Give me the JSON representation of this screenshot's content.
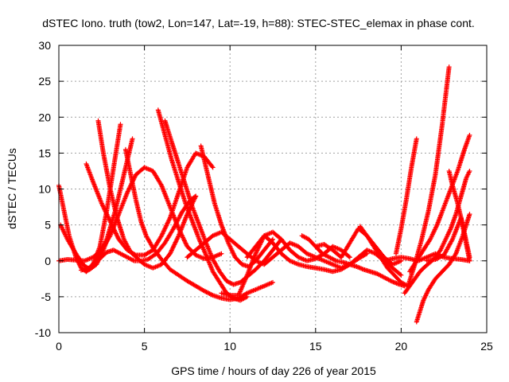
{
  "chart_data": {
    "type": "scatter",
    "title": "dSTEC Iono. truth (tow2, Lon=147, Lat=-19, h=88): STEC-STEC_elemax in phase cont.",
    "xlabel": "GPS time / hours of day 226 of year 2015",
    "ylabel": "dSTEC  / TECUs",
    "xlim": [
      0,
      25
    ],
    "ylim": [
      -10,
      30
    ],
    "xticks": [
      "0",
      "5",
      "10",
      "15",
      "20",
      "25"
    ],
    "yticks": [
      "-10",
      "-5",
      "0",
      "5",
      "10",
      "15",
      "20",
      "25",
      "30"
    ],
    "grid": true,
    "marker": "+",
    "color": "#ff0000",
    "series": [
      {
        "x": [
          0,
          0.3,
          0.6,
          1.0,
          1.3,
          1.6
        ],
        "y": [
          10.5,
          7,
          3.5,
          0.5,
          -1.0,
          -1.5
        ]
      },
      {
        "x": [
          0.1,
          0.5,
          1.0,
          1.4,
          1.8,
          2.2,
          2.6,
          3.0
        ],
        "y": [
          5,
          3,
          1,
          -0.5,
          -1.2,
          -0.5,
          1.5,
          4
        ]
      },
      {
        "x": [
          0,
          0.5,
          1.0,
          1.5,
          2.0,
          2.5,
          3.0,
          3.5,
          4.0,
          4.5,
          5.0,
          5.5,
          6.0,
          6.5,
          7.0,
          7.5,
          8.0,
          8.5,
          9.0,
          9.5
        ],
        "y": [
          0,
          0.2,
          0.1,
          0,
          0.5,
          1.5,
          3.5,
          6.5,
          9.5,
          12,
          13,
          12.5,
          10.5,
          7.5,
          4.5,
          2,
          0.8,
          0.3,
          0.5,
          1
        ]
      },
      {
        "x": [
          1.3,
          1.8,
          2.3,
          2.8,
          3.3,
          3.8,
          4.3
        ],
        "y": [
          -1.3,
          -1,
          0.5,
          3,
          7,
          12,
          17
        ]
      },
      {
        "x": [
          1.6,
          2.0,
          2.4,
          2.8,
          3.2,
          3.6,
          4.0,
          4.4,
          4.8,
          5.2,
          5.7,
          6.2,
          6.7,
          7.2,
          7.7,
          8.0
        ],
        "y": [
          -1.5,
          -0.8,
          0.3,
          1.2,
          1.5,
          1.0,
          0.5,
          0,
          0,
          0.2,
          1,
          2.5,
          4.5,
          6.8,
          8.5,
          9
        ]
      },
      {
        "x": [
          1.6,
          2.0,
          2.4,
          2.8,
          3.2,
          3.6
        ],
        "y": [
          -1.3,
          -0.5,
          2,
          7,
          13,
          19
        ]
      },
      {
        "x": [
          1.6,
          2.0,
          2.5,
          3.0,
          3.5,
          4.0,
          4.5,
          5.0,
          5.5,
          6.0,
          6.5,
          7.0,
          7.5,
          8.0,
          8.5,
          9.0
        ],
        "y": [
          13.5,
          11,
          8,
          5.5,
          3,
          1.5,
          0.8,
          0.8,
          1.5,
          3.5,
          6,
          9.5,
          13,
          15,
          14.5,
          13
        ]
      },
      {
        "x": [
          2.3,
          2.6,
          3.0,
          3.4,
          3.8,
          4.2,
          4.6,
          5.0,
          5.5,
          6.0,
          6.5,
          7.0,
          7.5,
          8.0
        ],
        "y": [
          19.5,
          15,
          10,
          6,
          3,
          1.2,
          0.3,
          -0.5,
          -1,
          -0.5,
          1,
          3.5,
          6.5,
          9
        ]
      },
      {
        "x": [
          3.9,
          4.2,
          4.5,
          4.8,
          5.1,
          5.5,
          6.0,
          6.5,
          7.0,
          7.5,
          8.0,
          8.5,
          9.0,
          9.5,
          10.0,
          10.5,
          11.0,
          11.5,
          12.0,
          12.5
        ],
        "y": [
          15.5,
          12,
          8.5,
          5.5,
          3.5,
          1.8,
          0.2,
          -1.2,
          -2,
          -2.8,
          -3.5,
          -4.2,
          -4.8,
          -5.2,
          -5.4,
          -5.2,
          -4.5,
          -4,
          -3.5,
          -3
        ]
      },
      {
        "x": [
          5.8,
          6.2,
          6.6,
          7.0,
          7.4,
          7.8,
          8.2,
          8.6,
          9.0,
          9.4,
          9.8,
          10.2,
          10.6,
          11.0
        ],
        "y": [
          21,
          17.5,
          14,
          11,
          8,
          5.5,
          3,
          0.8,
          -1.5,
          -3,
          -4.5,
          -5.2,
          -5.5,
          -5.0
        ]
      },
      {
        "x": [
          6.2,
          6.6,
          7.0,
          7.4,
          7.8,
          8.2,
          8.6,
          9.0,
          9.4,
          9.8,
          10.2,
          10.6,
          11.0,
          11.5,
          12.0,
          12.5,
          13.0
        ],
        "y": [
          19.5,
          16.5,
          13.5,
          10.5,
          7.5,
          5,
          2.5,
          0.2,
          -1.5,
          -2.8,
          -3.3,
          -3,
          -2.2,
          -1.2,
          0,
          1.5,
          3
        ]
      },
      {
        "x": [
          8.3,
          8.7,
          9.1,
          9.5,
          9.9,
          10.3,
          10.7,
          11.1,
          11.5,
          12.0,
          12.5
        ],
        "y": [
          16,
          12,
          8,
          5,
          2.5,
          0.5,
          -0.5,
          -0.8,
          0,
          1.5,
          3
        ]
      },
      {
        "x": [
          7.5,
          8.0,
          8.5,
          9.0,
          9.5,
          10.0,
          10.5,
          11.0,
          11.5,
          12.0,
          12.5,
          13.0,
          13.5,
          14.0,
          14.5,
          15.0,
          15.5,
          16.0,
          16.5,
          17.0,
          17.5,
          18.0
        ],
        "y": [
          0.5,
          1.5,
          2.5,
          3.5,
          4,
          3,
          2,
          1,
          0,
          -0.5,
          0.5,
          1.5,
          2.5,
          2,
          1,
          0.5,
          0,
          -0.5,
          -1,
          -0.5,
          0.3,
          1
        ]
      },
      {
        "x": [
          9.5,
          10.0,
          10.5,
          11.0,
          11.5,
          12.0,
          12.5,
          13.0,
          13.5,
          14.0,
          14.5,
          15.0,
          15.5,
          16.0,
          16.5,
          17.0
        ],
        "y": [
          -4.5,
          -4.8,
          -4.8,
          -2,
          1,
          3.5,
          4,
          3,
          1.5,
          0.5,
          0,
          0.3,
          1,
          2,
          1.5,
          0.5
        ]
      },
      {
        "x": [
          11.0,
          11.5,
          12.0,
          12.5,
          13.0,
          13.5,
          14.0,
          14.5,
          15.0,
          15.5,
          16.0,
          16.5,
          17.0,
          17.5,
          18.0,
          18.5,
          19.0,
          19.5,
          20.0
        ],
        "y": [
          0.5,
          2,
          3.5,
          2.5,
          1,
          0,
          -0.5,
          -0.8,
          -1,
          -1.2,
          -1.5,
          -1.2,
          -0.5,
          0.5,
          1.5,
          1,
          0,
          -1,
          -2
        ]
      },
      {
        "x": [
          14.2,
          14.6,
          15.0,
          15.4,
          15.8,
          16.2,
          16.6,
          17.0,
          17.4,
          17.8,
          18.2,
          18.6,
          19.0,
          19.4,
          19.8,
          20.2
        ],
        "y": [
          3.5,
          3,
          2,
          1,
          0.5,
          0,
          -0.2,
          -0.5,
          -0.8,
          -1.2,
          -1.5,
          -1.8,
          -2.3,
          -2.8,
          -3.2,
          -3.5
        ]
      },
      {
        "x": [
          15.0,
          15.5,
          16.0,
          16.5,
          17.0,
          17.5,
          18.0,
          18.5,
          19.0,
          19.5,
          20.0
        ],
        "y": [
          2,
          2.3,
          1.5,
          0.5,
          2.5,
          4.5,
          3.5,
          2,
          0.5,
          -0.5,
          0
        ]
      },
      {
        "x": [
          17.6,
          18.0,
          18.4,
          18.8,
          19.2,
          19.6,
          20.0,
          20.4
        ],
        "y": [
          4.8,
          3.5,
          2,
          0.5,
          -1,
          -2,
          -3,
          -3.5
        ]
      },
      {
        "x": [
          19.0,
          19.5,
          20.0,
          20.5,
          21.0,
          21.5,
          22.0,
          22.5,
          23.0,
          23.5,
          24.0
        ],
        "y": [
          0,
          0.3,
          0.5,
          0.3,
          0,
          0.5,
          1,
          0.5,
          0.3,
          0.2,
          0
        ]
      },
      {
        "x": [
          20.2,
          20.5,
          20.8,
          21.1,
          21.4,
          21.7,
          22.0,
          22.3,
          22.6,
          22.9,
          23.2,
          23.5,
          23.8,
          24.0
        ],
        "y": [
          -4.5,
          -3.5,
          -2.5,
          -1.5,
          -0.8,
          -0.2,
          0.5,
          1.5,
          3,
          4.5,
          6.5,
          9,
          11.5,
          12.5
        ]
      },
      {
        "x": [
          20.4,
          20.8,
          21.2,
          21.6,
          22.0,
          22.4,
          22.8
        ],
        "y": [
          -3.5,
          -0.5,
          3,
          7,
          12,
          19,
          27
        ]
      },
      {
        "x": [
          19.7,
          20.0,
          20.3,
          20.6,
          20.9
        ],
        "y": [
          1,
          4.5,
          8.5,
          13,
          17
        ]
      },
      {
        "x": [
          20.5,
          20.9,
          21.3,
          21.7,
          22.1,
          22.5,
          22.9,
          23.3,
          23.7,
          24.0
        ],
        "y": [
          -1.5,
          0,
          1.5,
          3,
          5,
          7.5,
          10,
          12.5,
          15.5,
          17.5
        ]
      },
      {
        "x": [
          20.9,
          21.1,
          21.3,
          21.6,
          22.0,
          22.4,
          22.8,
          23.2,
          23.6,
          24.0
        ],
        "y": [
          -8.5,
          -7,
          -5.5,
          -4,
          -2.5,
          -1.5,
          -0.5,
          1,
          3.5,
          6.5
        ]
      },
      {
        "x": [
          22.8,
          23.0,
          23.3,
          23.6,
          24.0
        ],
        "y": [
          12.5,
          10.5,
          8,
          5,
          0.5
        ]
      },
      {
        "x": [
          21.5,
          22.0,
          22.5,
          23.0,
          23.5,
          24.0
        ],
        "y": [
          0,
          0.2,
          0.8,
          3,
          6,
          0
        ]
      }
    ]
  }
}
